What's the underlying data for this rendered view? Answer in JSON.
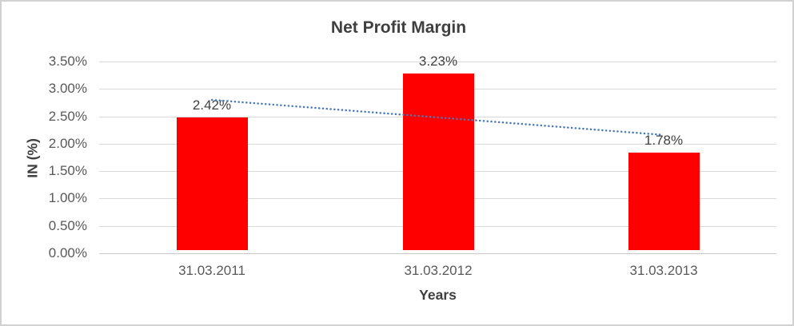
{
  "frame": {
    "background": "#ffffff",
    "border_color": "#d1d1d1"
  },
  "chart_data": {
    "type": "bar",
    "title": "Net Profit Margin",
    "categories": [
      "31.03.2011",
      "31.03.2012",
      "31.03.2013"
    ],
    "series": [
      {
        "name": "Net Profit Margin",
        "color": "#ff0000",
        "values": [
          2.42,
          3.23,
          1.78
        ]
      }
    ],
    "data_labels": [
      "2.42%",
      "3.23%",
      "1.78%"
    ],
    "xlabel": "Years",
    "ylabel": "IN (%)",
    "ylim": [
      0,
      3.5
    ],
    "ytick_step": 0.5,
    "yticks": [
      "3.50%",
      "3.00%",
      "2.50%",
      "2.00%",
      "1.50%",
      "1.00%",
      "0.50%",
      "0.00%"
    ],
    "grid": true,
    "legend": false,
    "gridline_color": "#d9d9d9",
    "trendline": {
      "type": "linear",
      "style": "dotted",
      "color": "#4878bc",
      "endpoints": [
        2.8,
        2.16
      ]
    },
    "text_colors": {
      "title": "#3f3f3f",
      "tick_labels": "#595959",
      "data_labels": "#404040"
    }
  }
}
